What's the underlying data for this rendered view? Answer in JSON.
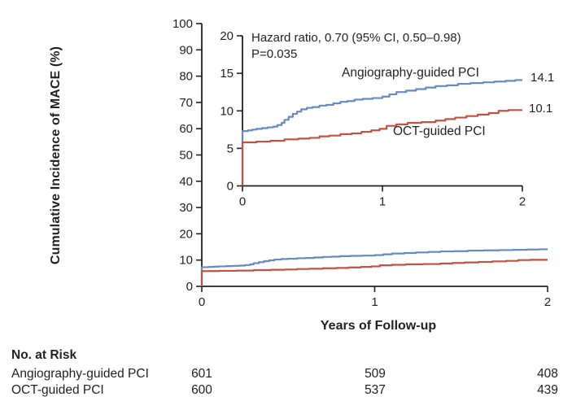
{
  "chart_data": {
    "type": "line",
    "subtype": "kaplan-meier-cumulative-incidence-step-curves",
    "title": "",
    "ylabel": "Cumulative Incidence of MACE (%)",
    "xlabel": "Years of Follow-up",
    "annotations": [
      "Hazard ratio, 0.70 (95% CI, 0.50–0.98)",
      "P=0.035"
    ],
    "main_axes": {
      "xlim": [
        0,
        2
      ],
      "ylim": [
        0,
        100
      ],
      "xticks": [
        0,
        1,
        2
      ],
      "yticks": [
        0,
        10,
        20,
        30,
        40,
        50,
        60,
        70,
        80,
        90,
        100
      ],
      "grid": false
    },
    "inset_axes": {
      "xlim": [
        0,
        2
      ],
      "ylim": [
        0,
        20
      ],
      "xticks": [
        0,
        1,
        2
      ],
      "yticks": [
        0,
        5,
        10,
        15,
        20
      ],
      "grid": false
    },
    "series": [
      {
        "name": "Angiography-guided PCI",
        "color": "#6789c3",
        "end_label": "14.1",
        "final_value": 14.1,
        "points": [
          [
            0,
            0
          ],
          [
            0,
            7.3
          ],
          [
            0.04,
            7.4
          ],
          [
            0.07,
            7.5
          ],
          [
            0.1,
            7.6
          ],
          [
            0.14,
            7.7
          ],
          [
            0.18,
            7.8
          ],
          [
            0.22,
            7.9
          ],
          [
            0.25,
            8.1
          ],
          [
            0.28,
            8.4
          ],
          [
            0.3,
            8.8
          ],
          [
            0.33,
            9.2
          ],
          [
            0.36,
            9.6
          ],
          [
            0.39,
            9.9
          ],
          [
            0.42,
            10.2
          ],
          [
            0.46,
            10.4
          ],
          [
            0.5,
            10.5
          ],
          [
            0.55,
            10.7
          ],
          [
            0.6,
            10.8
          ],
          [
            0.65,
            11.0
          ],
          [
            0.7,
            11.2
          ],
          [
            0.75,
            11.3
          ],
          [
            0.8,
            11.5
          ],
          [
            0.86,
            11.6
          ],
          [
            0.93,
            11.7
          ],
          [
            1.0,
            11.9
          ],
          [
            1.05,
            12.2
          ],
          [
            1.1,
            12.5
          ],
          [
            1.17,
            12.7
          ],
          [
            1.24,
            12.9
          ],
          [
            1.31,
            13.1
          ],
          [
            1.38,
            13.3
          ],
          [
            1.46,
            13.4
          ],
          [
            1.54,
            13.6
          ],
          [
            1.63,
            13.7
          ],
          [
            1.72,
            13.8
          ],
          [
            1.8,
            13.9
          ],
          [
            1.88,
            14.0
          ],
          [
            1.95,
            14.1
          ],
          [
            2.0,
            14.1
          ]
        ]
      },
      {
        "name": "OCT-guided PCI",
        "color": "#c05245",
        "end_label": "10.1",
        "final_value": 10.1,
        "points": [
          [
            0,
            0
          ],
          [
            0,
            5.8
          ],
          [
            0.1,
            5.9
          ],
          [
            0.2,
            6.0
          ],
          [
            0.3,
            6.2
          ],
          [
            0.4,
            6.3
          ],
          [
            0.48,
            6.4
          ],
          [
            0.55,
            6.6
          ],
          [
            0.62,
            6.7
          ],
          [
            0.7,
            6.9
          ],
          [
            0.78,
            7.0
          ],
          [
            0.85,
            7.2
          ],
          [
            0.92,
            7.4
          ],
          [
            0.98,
            7.6
          ],
          [
            1.03,
            8.0
          ],
          [
            1.1,
            8.2
          ],
          [
            1.18,
            8.4
          ],
          [
            1.28,
            8.5
          ],
          [
            1.38,
            8.7
          ],
          [
            1.45,
            8.9
          ],
          [
            1.52,
            9.1
          ],
          [
            1.6,
            9.3
          ],
          [
            1.68,
            9.5
          ],
          [
            1.76,
            9.7
          ],
          [
            1.83,
            10.0
          ],
          [
            1.9,
            10.1
          ],
          [
            2.0,
            10.1
          ]
        ]
      }
    ],
    "risk_table": {
      "title": "No. at Risk",
      "times": [
        0,
        1,
        2
      ],
      "rows": [
        {
          "label": "Angiography-guided PCI",
          "counts": [
            "601",
            "509",
            "408"
          ]
        },
        {
          "label": "OCT-guided PCI",
          "counts": [
            "600",
            "537",
            "439"
          ]
        }
      ]
    },
    "colors": {
      "axis": "#231f20",
      "text": "#231f20",
      "background": "#ffffff"
    }
  }
}
